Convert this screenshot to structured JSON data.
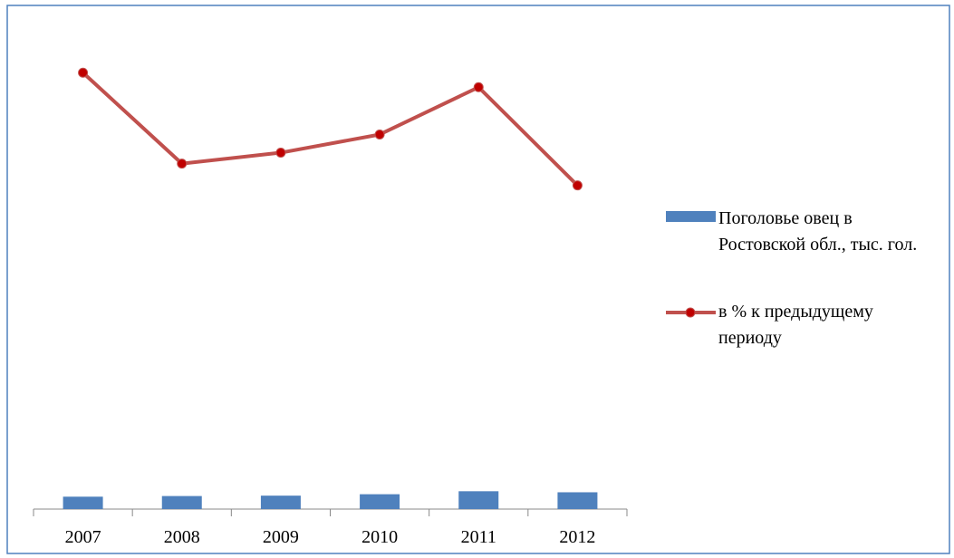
{
  "chart_data": {
    "type": "bar-line",
    "categories": [
      "2007",
      "2008",
      "2009",
      "2010",
      "2011",
      "2012"
    ],
    "series": [
      {
        "name": "Поголовье овец в Ростовской обл., тыс. гол.",
        "color": "#4f81bd",
        "type": "bar",
        "values": [
          960,
          1010,
          1040,
          1150,
          1380,
          1300
        ]
      },
      {
        "name": "в % к предыдущему периоду",
        "color": "#c0504d",
        "type": "line",
        "axis": "y2",
        "values": [
          120,
          95,
          98,
          103,
          116,
          89
        ]
      }
    ],
    "ylim": [
      0,
      38000
    ],
    "y2lim": [
      0,
      135
    ],
    "legend": "right"
  }
}
